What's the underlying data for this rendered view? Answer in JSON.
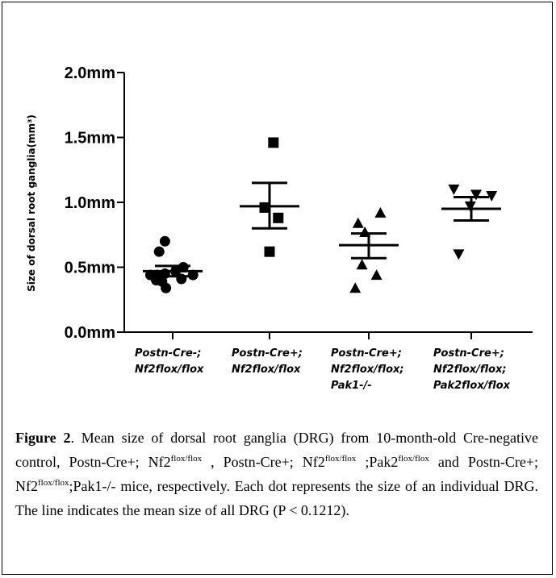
{
  "chart_data": {
    "type": "scatter",
    "title": "",
    "xlabel": "",
    "ylabel": "Size of dorsal root ganglia(mm³)",
    "ylim": [
      0,
      2.0
    ],
    "yticks": [
      "0.0mm",
      "0.5mm",
      "1.0mm",
      "1.5mm",
      "2.0mm"
    ],
    "ytick_values": [
      0,
      0.5,
      1.0,
      1.5,
      2.0
    ],
    "grid": false,
    "categories": [
      [
        "Postn-Cre-;",
        "Nf2flox/flox"
      ],
      [
        "Postn-Cre+;",
        "Nf2flox/flox"
      ],
      [
        "Postn-Cre+;",
        "Nf2flox/flox;",
        "Pak1-/-"
      ],
      [
        "Postn-Cre+;",
        "Nf2flox/flox;",
        "Pak2flox/flox"
      ]
    ],
    "series": [
      {
        "marker": "circle",
        "points": [
          [
            -0.08,
            0.7
          ],
          [
            -0.14,
            0.62
          ],
          [
            -0.23,
            0.44
          ],
          [
            -0.16,
            0.44
          ],
          [
            -0.08,
            0.45
          ],
          [
            0.03,
            0.47
          ],
          [
            0.11,
            0.5
          ],
          [
            0.21,
            0.44
          ],
          [
            -0.17,
            0.4
          ],
          [
            -0.11,
            0.39
          ],
          [
            0.09,
            0.41
          ],
          [
            -0.07,
            0.34
          ]
        ],
        "mean": 0.47,
        "err_low": 0.43,
        "err_high": 0.51
      },
      {
        "marker": "square",
        "points": [
          [
            0.04,
            1.46
          ],
          [
            -0.05,
            0.96
          ],
          [
            0.09,
            0.88
          ],
          [
            0.0,
            0.62
          ]
        ],
        "mean": 0.97,
        "err_low": 0.8,
        "err_high": 1.15
      },
      {
        "marker": "triangle-up",
        "points": [
          [
            -0.11,
            0.84
          ],
          [
            0.12,
            0.92
          ],
          [
            -0.04,
            0.77
          ],
          [
            -0.07,
            0.52
          ],
          [
            0.08,
            0.44
          ],
          [
            -0.14,
            0.34
          ]
        ],
        "mean": 0.67,
        "err_low": 0.57,
        "err_high": 0.76
      },
      {
        "marker": "triangle-down",
        "points": [
          [
            -0.18,
            1.1
          ],
          [
            0.05,
            1.06
          ],
          [
            0.21,
            1.05
          ],
          [
            -0.01,
            0.97
          ],
          [
            -0.13,
            0.6
          ]
        ],
        "mean": 0.95,
        "err_low": 0.86,
        "err_high": 1.04
      }
    ]
  },
  "caption": {
    "figure_label": "Figure 2",
    "t1": ". Mean size of dorsal root ganglia (DRG) from 10-month-old Cre-negative control, Postn-Cre+; Nf2",
    "s1": "flox/flox",
    "t2": " , Postn-Cre+; Nf2",
    "s2": "flox/flox",
    "t3": " ;Pak2",
    "s3": "flox/flox",
    "t4": " and Postn-Cre+; Nf2",
    "s4": "flox/flox",
    "t5": ";Pak1-/- mice, respectively. Each dot represents the size of an individual DRG. The line indicates the mean size of all DRG (P < 0.1212)."
  }
}
